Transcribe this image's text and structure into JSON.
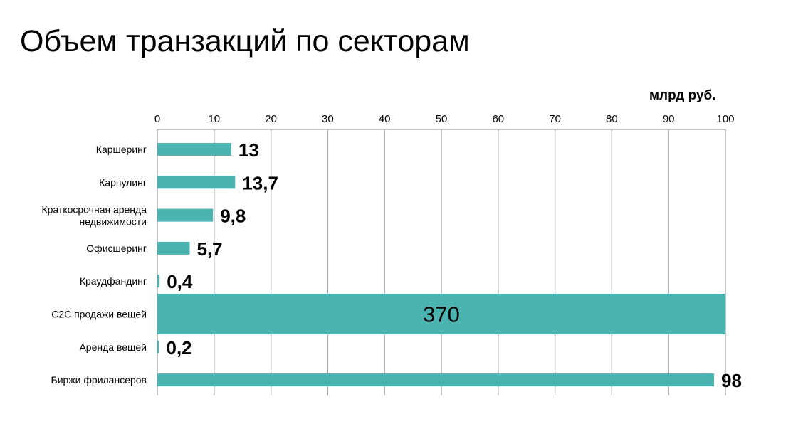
{
  "chart_data": {
    "type": "bar",
    "orientation": "horizontal",
    "title": "Объем транзакций по секторам",
    "unit_label": "млрд руб.",
    "categories": [
      "Каршеринг",
      "Карпулинг",
      "Краткосрочная аренда\nнедвижимости",
      "Офисшеринг",
      "Краудфандинг",
      "C2C продажи вещей",
      "Аренда вещей",
      "Биржи фрилансеров"
    ],
    "values": [
      13,
      13.7,
      9.8,
      5.7,
      0.4,
      370,
      0.2,
      98
    ],
    "data_labels": [
      "13",
      "13,7",
      "9,8",
      "5,7",
      "0,4",
      "370",
      "0,2",
      "98"
    ],
    "xlim": [
      0,
      100
    ],
    "x_ticks": [
      "0",
      "10",
      "20",
      "30",
      "40",
      "50",
      "60",
      "70",
      "80",
      "90",
      "100"
    ],
    "x_axis_position": "top",
    "grid": true,
    "bar_color": "#4bb3b0",
    "note": ""
  }
}
